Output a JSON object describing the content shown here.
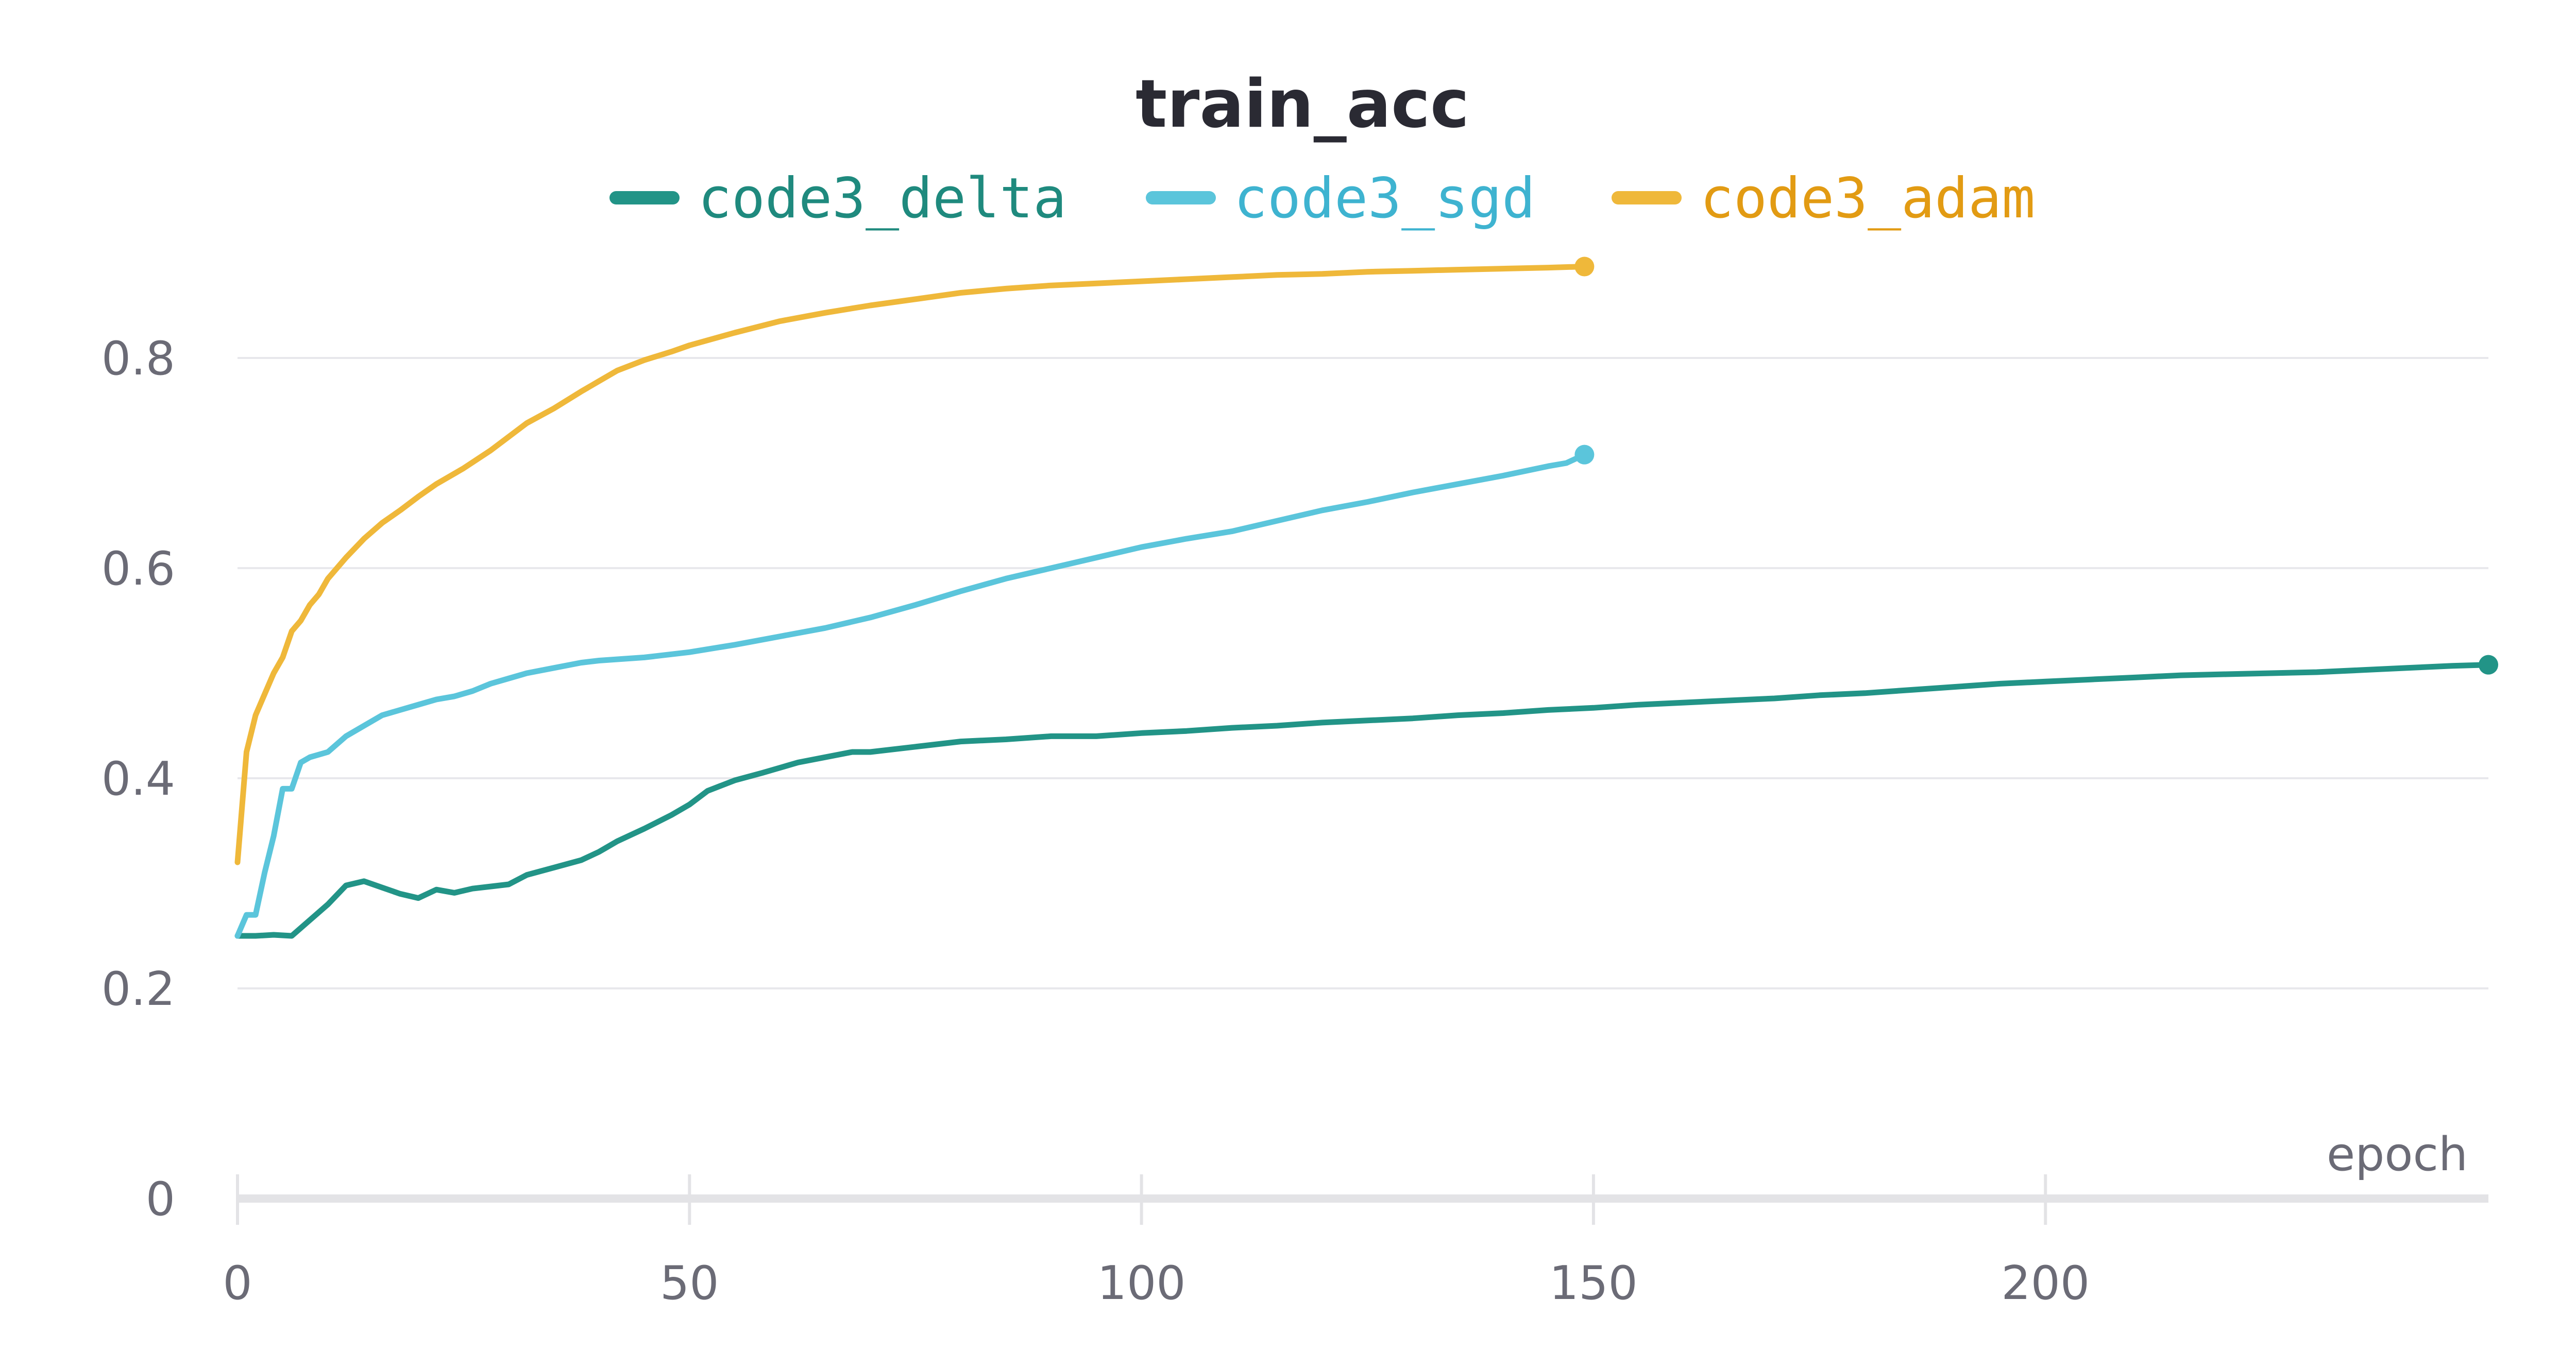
{
  "chart_data": {
    "type": "line",
    "title": "train_acc",
    "xlabel": "epoch",
    "ylabel": "",
    "xlim": [
      0,
      249
    ],
    "ylim": [
      0,
      0.9
    ],
    "x_ticks": [
      0,
      50,
      100,
      150,
      200
    ],
    "y_ticks": [
      0,
      0.2,
      0.4,
      0.6,
      0.8
    ],
    "y_tick_labels": [
      "0",
      "0.2",
      "0.4",
      "0.6",
      "0.8"
    ],
    "x_tick_labels": [
      "0",
      "50",
      "100",
      "150",
      "200"
    ],
    "grid": true,
    "legend_position": "top",
    "series": [
      {
        "name": "code3_delta",
        "color": "#229487",
        "label_color": "#1f8a7e",
        "x": [
          0,
          2,
          4,
          6,
          8,
          10,
          12,
          14,
          16,
          18,
          20,
          22,
          24,
          26,
          28,
          30,
          32,
          35,
          38,
          40,
          42,
          45,
          48,
          50,
          52,
          55,
          58,
          60,
          62,
          65,
          68,
          70,
          75,
          80,
          85,
          90,
          95,
          100,
          105,
          110,
          115,
          120,
          125,
          130,
          135,
          140,
          145,
          150,
          155,
          160,
          165,
          170,
          175,
          180,
          185,
          190,
          195,
          200,
          205,
          210,
          215,
          220,
          225,
          230,
          235,
          240,
          245,
          249
        ],
        "y": [
          0.25,
          0.25,
          0.251,
          0.25,
          0.265,
          0.28,
          0.298,
          0.302,
          0.296,
          0.29,
          0.286,
          0.294,
          0.291,
          0.295,
          0.297,
          0.299,
          0.308,
          0.315,
          0.322,
          0.33,
          0.34,
          0.352,
          0.365,
          0.375,
          0.388,
          0.398,
          0.405,
          0.41,
          0.415,
          0.42,
          0.425,
          0.425,
          0.43,
          0.435,
          0.437,
          0.44,
          0.44,
          0.443,
          0.445,
          0.448,
          0.45,
          0.453,
          0.455,
          0.457,
          0.46,
          0.462,
          0.465,
          0.467,
          0.47,
          0.472,
          0.474,
          0.476,
          0.479,
          0.481,
          0.484,
          0.487,
          0.49,
          0.492,
          0.494,
          0.496,
          0.498,
          0.499,
          0.5,
          0.501,
          0.503,
          0.505,
          0.507,
          0.508
        ]
      },
      {
        "name": "code3_sgd",
        "color": "#5bc5db",
        "label_color": "#3eb3d0",
        "x": [
          0,
          1,
          2,
          3,
          4,
          5,
          6,
          7,
          8,
          10,
          12,
          14,
          16,
          18,
          20,
          22,
          24,
          26,
          28,
          30,
          32,
          35,
          38,
          40,
          45,
          50,
          55,
          60,
          65,
          70,
          75,
          80,
          85,
          90,
          95,
          100,
          105,
          110,
          115,
          120,
          125,
          130,
          135,
          140,
          145,
          147,
          149
        ],
        "y": [
          0.25,
          0.27,
          0.27,
          0.31,
          0.345,
          0.39,
          0.39,
          0.415,
          0.42,
          0.425,
          0.44,
          0.45,
          0.46,
          0.465,
          0.47,
          0.475,
          0.478,
          0.483,
          0.49,
          0.495,
          0.5,
          0.505,
          0.51,
          0.512,
          0.515,
          0.52,
          0.527,
          0.535,
          0.543,
          0.553,
          0.565,
          0.578,
          0.59,
          0.6,
          0.61,
          0.62,
          0.628,
          0.635,
          0.645,
          0.655,
          0.663,
          0.672,
          0.68,
          0.688,
          0.697,
          0.7,
          0.708
        ]
      },
      {
        "name": "code3_adam",
        "color": "#efb83a",
        "label_color": "#e29b13",
        "x": [
          0,
          1,
          2,
          3,
          4,
          5,
          6,
          7,
          8,
          9,
          10,
          12,
          14,
          16,
          18,
          20,
          22,
          25,
          28,
          30,
          32,
          35,
          38,
          40,
          42,
          45,
          48,
          50,
          55,
          60,
          65,
          70,
          75,
          80,
          85,
          90,
          95,
          100,
          105,
          110,
          115,
          120,
          125,
          130,
          135,
          140,
          145,
          149
        ],
        "y": [
          0.32,
          0.425,
          0.46,
          0.48,
          0.5,
          0.515,
          0.54,
          0.55,
          0.565,
          0.575,
          0.59,
          0.61,
          0.628,
          0.643,
          0.655,
          0.668,
          0.68,
          0.695,
          0.712,
          0.725,
          0.738,
          0.752,
          0.768,
          0.778,
          0.788,
          0.798,
          0.806,
          0.812,
          0.824,
          0.835,
          0.843,
          0.85,
          0.856,
          0.862,
          0.866,
          0.869,
          0.871,
          0.873,
          0.875,
          0.877,
          0.879,
          0.88,
          0.882,
          0.883,
          0.884,
          0.885,
          0.886,
          0.887
        ]
      }
    ]
  }
}
